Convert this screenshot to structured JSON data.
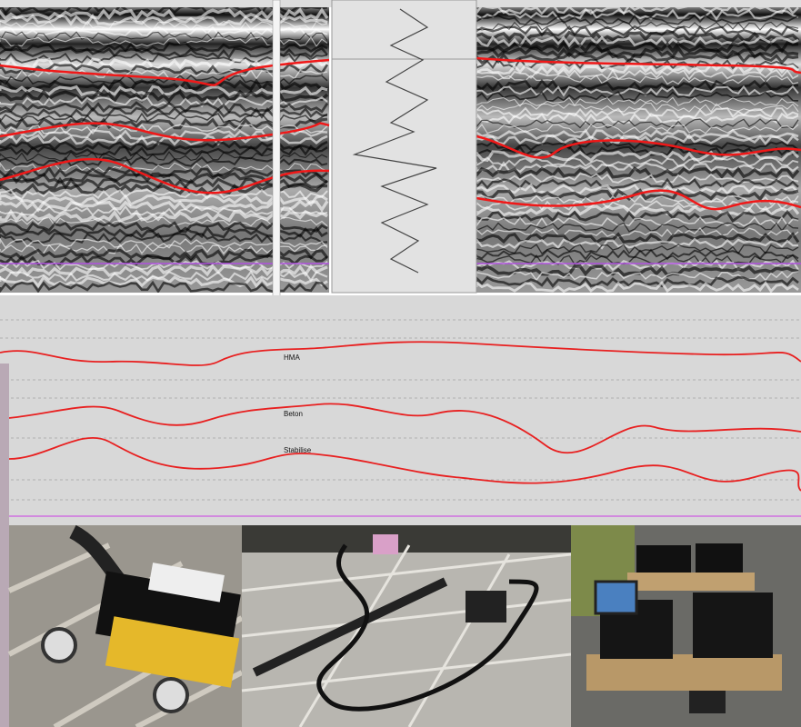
{
  "labels": {
    "layer_1": "HMA",
    "layer_2": "Beton",
    "layer_3": "Stabilise"
  }
}
